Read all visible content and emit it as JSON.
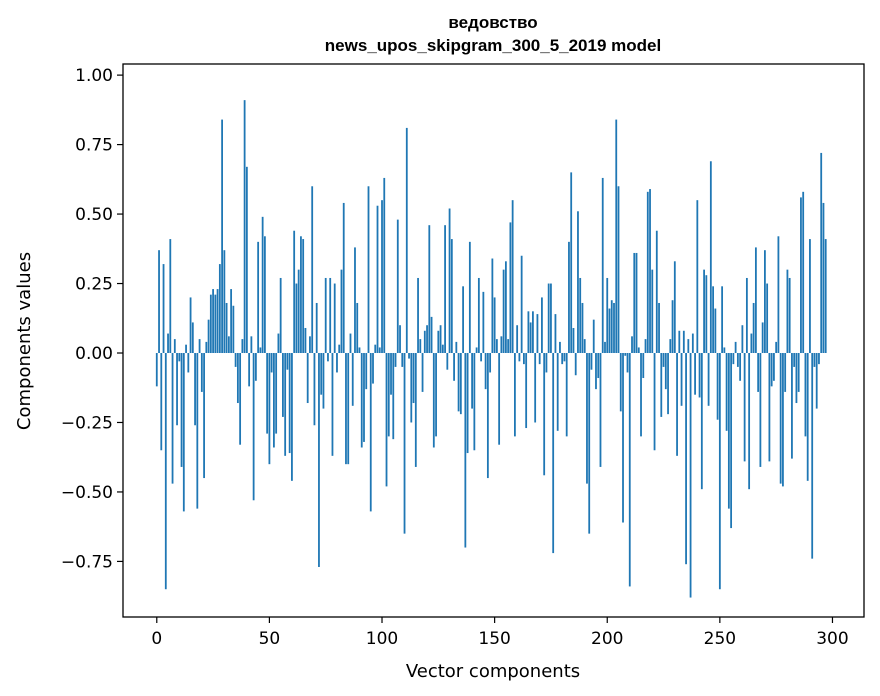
{
  "chart_data": {
    "type": "bar",
    "title": "ведовство",
    "subtitle": "news_upos_skipgram_300_5_2019 model",
    "xlabel": "Vector components",
    "ylabel": "Components values",
    "xlim": [
      -15,
      314
    ],
    "ylim": [
      -0.95,
      1.04
    ],
    "x_ticks": [
      0,
      50,
      100,
      150,
      200,
      250,
      300
    ],
    "y_ticks": [
      1.0,
      0.75,
      0.5,
      0.25,
      0.0,
      -0.25,
      -0.5,
      -0.75
    ],
    "x_tick_labels": [
      "0",
      "50",
      "100",
      "150",
      "200",
      "250",
      "300"
    ],
    "y_tick_labels": [
      "1.00",
      "0.75",
      "0.50",
      "0.25",
      "0.00",
      "−0.25",
      "−0.50",
      "−0.75"
    ],
    "bar_color": "#1f77b4",
    "grid": false,
    "series": [
      {
        "values": [
          -0.12,
          0.37,
          -0.35,
          0.32,
          -0.85,
          0.07,
          0.41,
          -0.47,
          0.05,
          -0.26,
          -0.03,
          -0.41,
          -0.57,
          0.03,
          -0.07,
          0.2,
          0.11,
          -0.26,
          -0.56,
          0.05,
          -0.14,
          -0.45,
          0.04,
          0.12,
          0.21,
          0.23,
          0.21,
          0.23,
          0.32,
          0.84,
          0.37,
          0.18,
          0.06,
          0.23,
          0.17,
          -0.05,
          -0.18,
          -0.33,
          0.05,
          0.91,
          0.67,
          -0.12,
          0.06,
          -0.53,
          -0.1,
          0.4,
          0.02,
          0.49,
          0.42,
          -0.29,
          -0.4,
          -0.07,
          -0.34,
          -0.29,
          0.07,
          0.27,
          -0.23,
          -0.37,
          -0.06,
          -0.36,
          -0.46,
          0.44,
          0.25,
          0.3,
          0.42,
          0.41,
          0.09,
          -0.18,
          0.06,
          0.6,
          -0.26,
          0.18,
          -0.77,
          -0.15,
          -0.2,
          0.27,
          -0.03,
          0.27,
          -0.37,
          0.25,
          -0.07,
          0.03,
          0.3,
          0.54,
          -0.4,
          -0.4,
          0.07,
          -0.19,
          0.38,
          0.18,
          0.02,
          -0.34,
          -0.32,
          -0.13,
          0.6,
          -0.57,
          -0.11,
          0.03,
          0.53,
          0.02,
          0.55,
          0.63,
          -0.48,
          -0.3,
          -0.15,
          -0.31,
          -0.05,
          0.48,
          0.1,
          -0.05,
          -0.65,
          0.81,
          -0.02,
          -0.25,
          -0.18,
          -0.41,
          0.27,
          0.05,
          -0.14,
          0.08,
          0.1,
          0.46,
          0.13,
          -0.34,
          -0.3,
          0.08,
          0.1,
          0.03,
          0.46,
          -0.06,
          0.52,
          0.41,
          -0.1,
          0.04,
          -0.21,
          -0.22,
          0.24,
          -0.7,
          -0.36,
          0.4,
          -0.2,
          -0.35,
          0.02,
          0.27,
          -0.03,
          0.22,
          -0.13,
          -0.45,
          -0.07,
          0.34,
          0.2,
          0.05,
          -0.33,
          0.06,
          0.3,
          0.33,
          0.05,
          0.47,
          0.55,
          -0.3,
          0.1,
          -0.03,
          0.35,
          -0.04,
          -0.27,
          0.15,
          0.11,
          0.15,
          -0.25,
          0.14,
          -0.04,
          0.2,
          -0.44,
          -0.07,
          0.25,
          0.25,
          -0.72,
          0.14,
          -0.28,
          0.04,
          -0.04,
          -0.03,
          -0.3,
          0.4,
          0.65,
          0.09,
          -0.08,
          0.51,
          0.27,
          0.18,
          0.05,
          -0.47,
          -0.65,
          -0.06,
          0.12,
          -0.13,
          -0.09,
          -0.41,
          0.63,
          0.04,
          0.27,
          0.16,
          0.19,
          0.18,
          0.84,
          0.6,
          -0.21,
          -0.61,
          -0.01,
          -0.07,
          -0.84,
          0.06,
          0.36,
          0.36,
          0.02,
          -0.3,
          -0.09,
          0.05,
          0.58,
          0.59,
          0.3,
          -0.35,
          0.44,
          0.18,
          -0.23,
          -0.05,
          -0.13,
          -0.22,
          0.05,
          0.19,
          0.33,
          -0.37,
          0.08,
          -0.19,
          0.08,
          -0.76,
          0.05,
          -0.88,
          0.07,
          -0.15,
          0.55,
          -0.16,
          -0.49,
          0.3,
          0.28,
          -0.19,
          0.69,
          0.24,
          0.16,
          -0.24,
          -0.85,
          0.24,
          0.02,
          -0.28,
          -0.56,
          -0.63,
          -0.04,
          0.04,
          -0.05,
          -0.1,
          0.1,
          -0.39,
          0.27,
          -0.49,
          0.07,
          0.18,
          0.38,
          -0.14,
          -0.41,
          0.11,
          0.37,
          0.25,
          -0.39,
          -0.12,
          -0.1,
          0.04,
          0.42,
          -0.47,
          -0.48,
          -0.14,
          0.3,
          0.27,
          -0.38,
          -0.05,
          -0.18,
          -0.14,
          0.56,
          0.58,
          -0.3,
          -0.46,
          0.41,
          -0.74,
          -0.05,
          -0.2,
          -0.04,
          0.72,
          0.54,
          0.41
        ]
      }
    ]
  }
}
